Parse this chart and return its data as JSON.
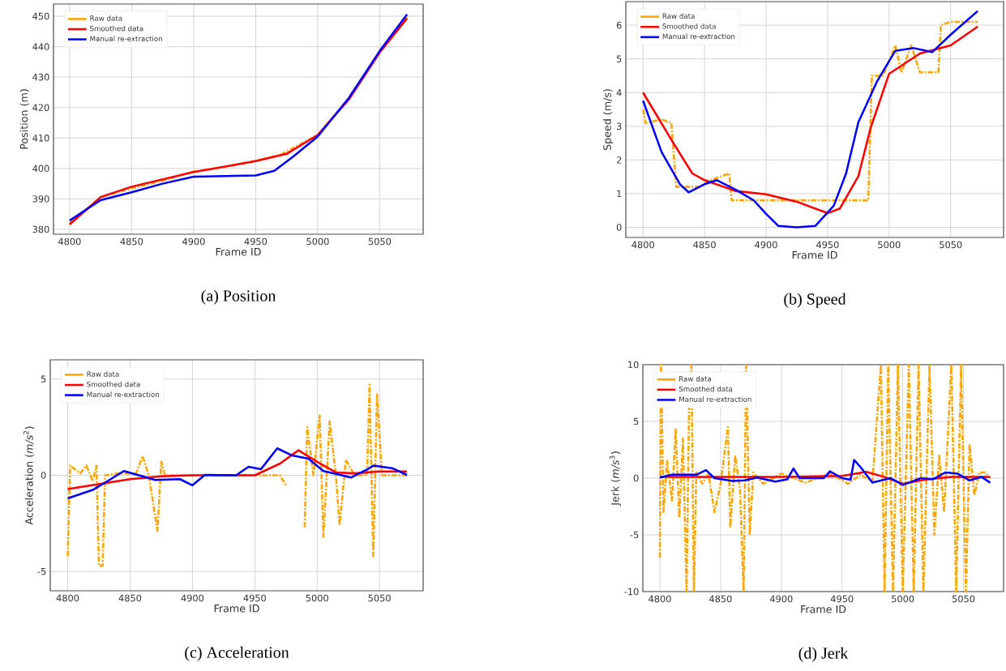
{
  "chart_data": [
    {
      "type": "line",
      "xlabel": "Frame ID",
      "ylabel": "Position (m)",
      "xlim": [
        4787,
        5085
      ],
      "ylim": [
        378.4,
        454
      ],
      "xticks": [
        4800,
        4850,
        4900,
        4950,
        5000,
        5050
      ],
      "yticks": [
        380,
        390,
        400,
        410,
        420,
        430,
        440,
        450
      ],
      "grid": true,
      "legend": "top left",
      "annotations": [
        "(a) Position"
      ],
      "series": [
        {
          "name": "Raw data",
          "color": "#ffa500",
          "line_style": "dashdot",
          "x": [
            4800,
            4825,
            4850,
            4875,
            4900,
            4925,
            4950,
            4970,
            5000,
            5025,
            5050,
            5072
          ],
          "values": [
            382,
            390.5,
            393.5,
            396,
            399,
            400.5,
            402.5,
            404.5,
            411,
            422.8,
            438.5,
            449.5
          ]
        },
        {
          "name": "Smoothed data",
          "color": "#ff0000",
          "line_style": "solid",
          "x": [
            4800,
            4825,
            4850,
            4900,
            4950,
            4975,
            5000,
            5025,
            5050,
            5072
          ],
          "values": [
            381.6,
            390.6,
            394,
            398.8,
            402.4,
            404.8,
            411,
            422.6,
            438.1,
            449.3
          ]
        },
        {
          "name": "Manual re-extraction",
          "color": "#0000ff",
          "line_style": "solid",
          "x": [
            4800,
            4825,
            4850,
            4875,
            4900,
            4925,
            4950,
            4965,
            4980,
            5000,
            5025,
            5050,
            5072
          ],
          "values": [
            382.9,
            389.6,
            392.2,
            395,
            397.3,
            397.5,
            397.7,
            399.2,
            403.8,
            410.5,
            423.1,
            438.6,
            450.6
          ]
        }
      ]
    },
    {
      "type": "line",
      "xlabel": "Frame ID",
      "ylabel": "Speed (m/s)",
      "xlim": [
        4786,
        5093
      ],
      "ylim": [
        -0.3,
        6.7
      ],
      "xticks": [
        4800,
        4850,
        4900,
        4950,
        5000,
        5050
      ],
      "yticks": [
        0,
        1,
        2,
        3,
        4,
        5,
        6
      ],
      "grid": true,
      "legend": "top left",
      "annotations": [
        "(b) Speed"
      ],
      "series": [
        {
          "name": "Raw data",
          "color": "#ffa500",
          "line_style": "dashdot",
          "x": [
            4800,
            4802,
            4815,
            4823,
            4827,
            4845,
            4855,
            4870,
            4872,
            4900,
            4950,
            4983,
            4986,
            4995,
            5005,
            5010,
            5018,
            5025,
            5040,
            5042,
            5050,
            5072
          ],
          "values": [
            3.5,
            3.1,
            3.2,
            3.1,
            1.2,
            1.2,
            1.4,
            1.6,
            0.8,
            0.8,
            0.8,
            0.8,
            4.5,
            4.5,
            5.4,
            4.6,
            5.4,
            4.6,
            4.6,
            6.0,
            6.1,
            6.1
          ]
        },
        {
          "name": "Smoothed data",
          "color": "#ff0000",
          "line_style": "solid",
          "x": [
            4800,
            4825,
            4840,
            4850,
            4875,
            4900,
            4925,
            4950,
            4960,
            4975,
            4985,
            5000,
            5025,
            5050,
            5072
          ],
          "values": [
            4.0,
            2.48,
            1.6,
            1.4,
            1.08,
            0.98,
            0.76,
            0.42,
            0.56,
            1.52,
            2.96,
            4.56,
            5.16,
            5.4,
            5.96
          ]
        },
        {
          "name": "Manual re-extraction",
          "color": "#0000ff",
          "line_style": "solid",
          "x": [
            4800,
            4815,
            4830,
            4837,
            4850,
            4860,
            4875,
            4890,
            4900,
            4910,
            4925,
            4940,
            4955,
            4965,
            4975,
            4990,
            5005,
            5020,
            5035,
            5050,
            5072
          ],
          "values": [
            3.76,
            2.24,
            1.28,
            1.04,
            1.28,
            1.4,
            1.12,
            0.8,
            0.4,
            0.04,
            0,
            0.04,
            0.64,
            1.6,
            3.12,
            4.32,
            5.24,
            5.32,
            5.2,
            5.72,
            6.42
          ]
        }
      ]
    },
    {
      "type": "line",
      "xlabel": "Frame ID",
      "ylabel": "Acceleration (*m/s*$^{2}$)",
      "xlim": [
        4786,
        5085
      ],
      "ylim": [
        -6,
        6
      ],
      "xticks": [
        4800,
        4850,
        4900,
        4950,
        5000,
        5050
      ],
      "yticks": [
        -5,
        0,
        5
      ],
      "grid": true,
      "legend": "top left",
      "annotations": [
        "(c) Acceleration"
      ],
      "series": [
        {
          "name": "Raw data",
          "color": "#ffa500",
          "line_style": "dashdot",
          "x": [
            4800,
            4802,
            4810,
            4815,
            4820,
            4823,
            4825,
            4828,
            4830,
            4840,
            4855,
            4860,
            4865,
            4872,
            4875,
            4878,
            4950,
            4970,
            4975,
            4982,
            4986,
            4990,
            4992,
            4997,
            5002,
            5005,
            5010,
            5015,
            5018,
            5023,
            5030,
            5040,
            5042,
            5045,
            5048,
            5052,
            5072
          ],
          "values": [
            -4.2,
            0.5,
            0.1,
            0.5,
            -0.3,
            0.5,
            -4.7,
            -4.7,
            0.0,
            0.1,
            0.1,
            1.0,
            0.0,
            -2.9,
            0.7,
            0.0,
            0.0,
            0.0,
            -0.5,
            null,
            null,
            -2.7,
            2.5,
            0.0,
            3.1,
            -3.2,
            2.8,
            0.0,
            -2.6,
            0.8,
            0.0,
            0.0,
            4.7,
            -4.2,
            4.2,
            0.0,
            0.0
          ]
        },
        {
          "name": "Smoothed data",
          "color": "#ff0000",
          "line_style": "solid",
          "x": [
            4800,
            4850,
            4875,
            4900,
            4950,
            4970,
            4985,
            5000,
            5015,
            5030,
            5050,
            5072
          ],
          "values": [
            -0.72,
            -0.2,
            -0.05,
            0.0,
            0.0,
            0.6,
            1.3,
            0.7,
            0.15,
            0.1,
            0.2,
            0.2
          ]
        },
        {
          "name": "Manual re-extraction",
          "color": "#0000ff",
          "line_style": "solid",
          "x": [
            4800,
            4820,
            4830,
            4845,
            4860,
            4870,
            4890,
            4900,
            4910,
            4935,
            4945,
            4955,
            4968,
            4980,
            4993,
            5005,
            5020,
            5027,
            5040,
            5045,
            5060,
            5072
          ],
          "values": [
            -1.2,
            -0.76,
            -0.38,
            0.22,
            -0.05,
            -0.24,
            -0.2,
            -0.52,
            0.02,
            0.0,
            0.44,
            0.32,
            1.4,
            1.03,
            0.86,
            0.22,
            0.0,
            -0.12,
            0.3,
            0.5,
            0.37,
            0.02
          ]
        }
      ]
    },
    {
      "type": "line",
      "xlabel": "Frame ID",
      "ylabel": "Jerk (*m/s*$^{3}$)",
      "xlim": [
        4786,
        5083
      ],
      "ylim": [
        -10,
        10
      ],
      "xticks": [
        4800,
        4850,
        4900,
        4950,
        5000,
        5050
      ],
      "yticks": [
        -10,
        -5,
        0,
        5,
        10
      ],
      "grid": true,
      "legend": "top left",
      "annotations": [
        "(d) Jerk"
      ],
      "series": [
        {
          "name": "Raw data",
          "color": "#ffa500",
          "line_style": "dashdot",
          "x": [
            4800,
            4801,
            4803,
            4806,
            4810,
            4813,
            4816,
            4819,
            4822,
            4824,
            4826,
            4828,
            4830,
            4835,
            4840,
            4845,
            4850,
            4856,
            4858,
            4862,
            4866,
            4869,
            4871,
            4874,
            4877,
            4885,
            4900,
            4920,
            4940,
            4955,
            4965,
            4975,
            4982,
            4985,
            4988,
            4992,
            4996,
            5000,
            5005,
            5009,
            5013,
            5017,
            5022,
            5026,
            5030,
            5034,
            5040,
            5044,
            5048,
            5052,
            5055,
            5059,
            5063,
            5068,
            5072
          ],
          "values": [
            -7,
            10,
            -3,
            1.5,
            -2,
            4.3,
            -3.5,
            3.5,
            -10,
            6,
            10,
            -10,
            0.5,
            -0.5,
            0.4,
            -3,
            -0.5,
            4.5,
            -4.4,
            2,
            -1,
            -10,
            10,
            -5,
            0.5,
            -0.5,
            0.4,
            -0.4,
            0.4,
            -0.5,
            0.3,
            -0.3,
            10,
            -10,
            10,
            -10,
            10,
            -10,
            10,
            -10,
            10,
            -10,
            10,
            -5,
            2,
            -3,
            10,
            -10,
            10,
            -10,
            3,
            -1.5,
            0.5,
            0.5,
            0.0
          ]
        },
        {
          "name": "Smoothed data",
          "color": "#ff0000",
          "line_style": "solid",
          "x": [
            4800,
            4900,
            4950,
            4970,
            4985,
            5000,
            5020,
            5040,
            5072
          ],
          "values": [
            0.1,
            0.1,
            0.2,
            0.55,
            0.1,
            -0.5,
            -0.1,
            0.1,
            0.1
          ]
        },
        {
          "name": "Manual re-extraction",
          "color": "#0000ff",
          "line_style": "solid",
          "x": [
            4800,
            4810,
            4820,
            4830,
            4838,
            4845,
            4860,
            4870,
            4880,
            4895,
            4905,
            4910,
            4915,
            4935,
            4940,
            4950,
            4957,
            4960,
            4965,
            4975,
            4990,
            5000,
            5015,
            5025,
            5035,
            5045,
            5055,
            5065,
            5072
          ],
          "values": [
            0.05,
            0.3,
            0.3,
            0.3,
            0.7,
            0.0,
            -0.25,
            -0.2,
            0.05,
            -0.3,
            -0.1,
            0.85,
            0.0,
            0.0,
            0.6,
            0.0,
            -0.15,
            1.6,
            1.0,
            -0.4,
            0.0,
            -0.6,
            0.0,
            -0.1,
            0.5,
            0.4,
            -0.2,
            0.1,
            -0.4
          ]
        }
      ]
    }
  ]
}
